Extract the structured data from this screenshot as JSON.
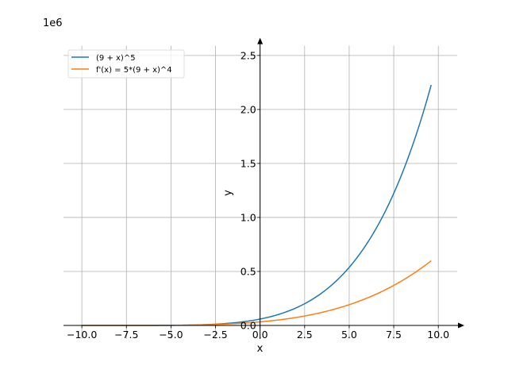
{
  "chart_data": {
    "type": "line",
    "title": "",
    "xlabel": "x",
    "ylabel": "y",
    "y_offset_label": "1e6",
    "xlim": [
      -11.03,
      11.06
    ],
    "ylim": [
      -0.125,
      2.59
    ],
    "y_scale": 1000000,
    "grid": true,
    "legend_position": "top-left",
    "x_ticks": [
      -10,
      -7.5,
      -5,
      -2.5,
      0,
      2.5,
      5,
      7.5,
      10
    ],
    "x_tick_labels": [
      "−10.0",
      "−7.5",
      "−5.0",
      "−2.5",
      "0.0",
      "2.5",
      "5.0",
      "7.5",
      "10.0"
    ],
    "y_ticks": [
      0,
      0.5,
      1.0,
      1.5,
      2.0,
      2.5
    ],
    "y_tick_labels": [
      "0.0",
      "0.5",
      "1.0",
      "1.5",
      "2.0",
      "2.5"
    ],
    "series": [
      {
        "name": "(9 + x)^5",
        "color": "#1f77b4",
        "expr": "(9+x)^5",
        "x_range": [
          -10,
          9.6
        ]
      },
      {
        "name": "f'(x) = 5*(9 + x)^4",
        "color": "#ff7f0e",
        "expr": "5*(9+x)^4",
        "x_range": [
          -10,
          9.6
        ]
      }
    ]
  }
}
